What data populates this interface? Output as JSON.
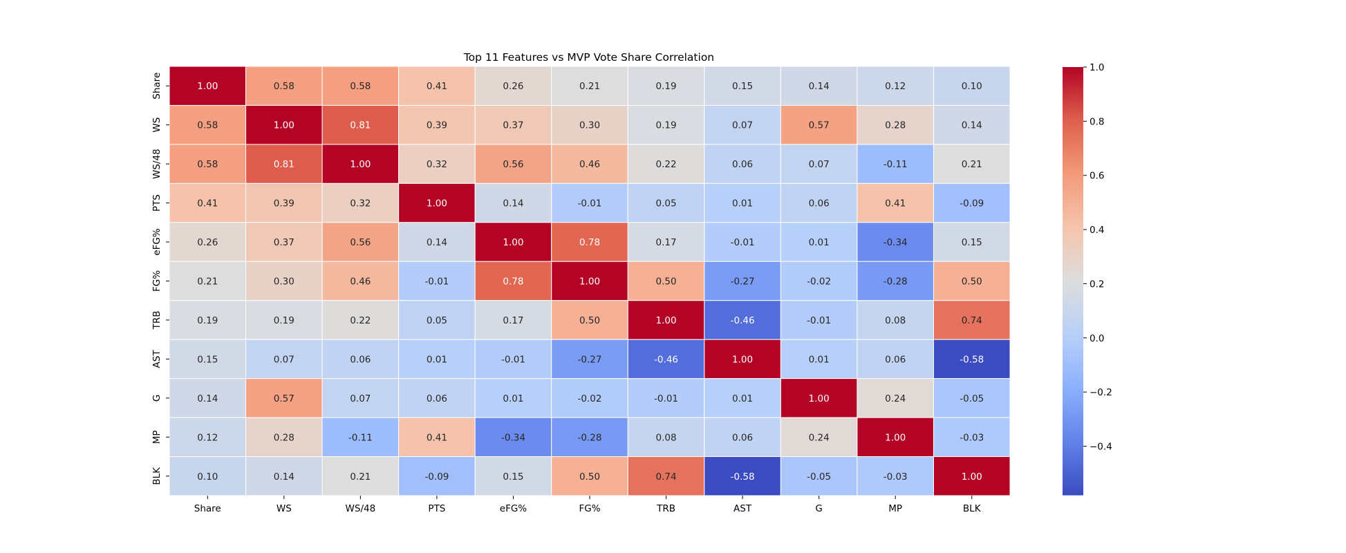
{
  "chart_data": {
    "type": "heatmap",
    "title": "Top 11 Features vs MVP Vote Share Correlation",
    "x_labels": [
      "Share",
      "WS",
      "WS/48",
      "PTS",
      "eFG%",
      "FG%",
      "TRB",
      "AST",
      "G",
      "MP",
      "BLK"
    ],
    "y_labels": [
      "Share",
      "WS",
      "WS/48",
      "PTS",
      "eFG%",
      "FG%",
      "TRB",
      "AST",
      "G",
      "MP",
      "BLK"
    ],
    "values": [
      [
        1.0,
        0.58,
        0.58,
        0.41,
        0.26,
        0.21,
        0.19,
        0.15,
        0.14,
        0.12,
        0.1
      ],
      [
        0.58,
        1.0,
        0.81,
        0.39,
        0.37,
        0.3,
        0.19,
        0.07,
        0.57,
        0.28,
        0.14
      ],
      [
        0.58,
        0.81,
        1.0,
        0.32,
        0.56,
        0.46,
        0.22,
        0.06,
        0.07,
        -0.11,
        0.21
      ],
      [
        0.41,
        0.39,
        0.32,
        1.0,
        0.14,
        -0.01,
        0.05,
        0.01,
        0.06,
        0.41,
        -0.09
      ],
      [
        0.26,
        0.37,
        0.56,
        0.14,
        1.0,
        0.78,
        0.17,
        -0.01,
        0.01,
        -0.34,
        0.15
      ],
      [
        0.21,
        0.3,
        0.46,
        -0.01,
        0.78,
        1.0,
        0.5,
        -0.27,
        -0.02,
        -0.28,
        0.5
      ],
      [
        0.19,
        0.19,
        0.22,
        0.05,
        0.17,
        0.5,
        1.0,
        -0.46,
        -0.01,
        0.08,
        0.74
      ],
      [
        0.15,
        0.07,
        0.06,
        0.01,
        -0.01,
        -0.27,
        -0.46,
        1.0,
        0.01,
        0.06,
        -0.58
      ],
      [
        0.14,
        0.57,
        0.07,
        0.06,
        0.01,
        -0.02,
        -0.01,
        0.01,
        1.0,
        0.24,
        -0.05
      ],
      [
        0.12,
        0.28,
        -0.11,
        0.41,
        -0.34,
        -0.28,
        0.08,
        0.06,
        0.24,
        1.0,
        -0.03
      ],
      [
        0.1,
        0.14,
        0.21,
        -0.09,
        0.15,
        0.5,
        0.74,
        -0.58,
        -0.05,
        -0.03,
        1.0
      ]
    ],
    "colormap": "coolwarm",
    "vmin": -0.58,
    "vmax": 1.0,
    "colorbar_ticks": [
      1.0,
      0.8,
      0.6,
      0.4,
      0.2,
      0.0,
      -0.2,
      -0.4
    ],
    "colorbar_tick_labels": [
      "1.0",
      "0.8",
      "0.6",
      "0.4",
      "0.2",
      "0.0",
      "−0.2",
      "−0.4"
    ],
    "annotations": "values shown in each cell, two decimals",
    "grid": false,
    "legend": "colorbar-right"
  }
}
